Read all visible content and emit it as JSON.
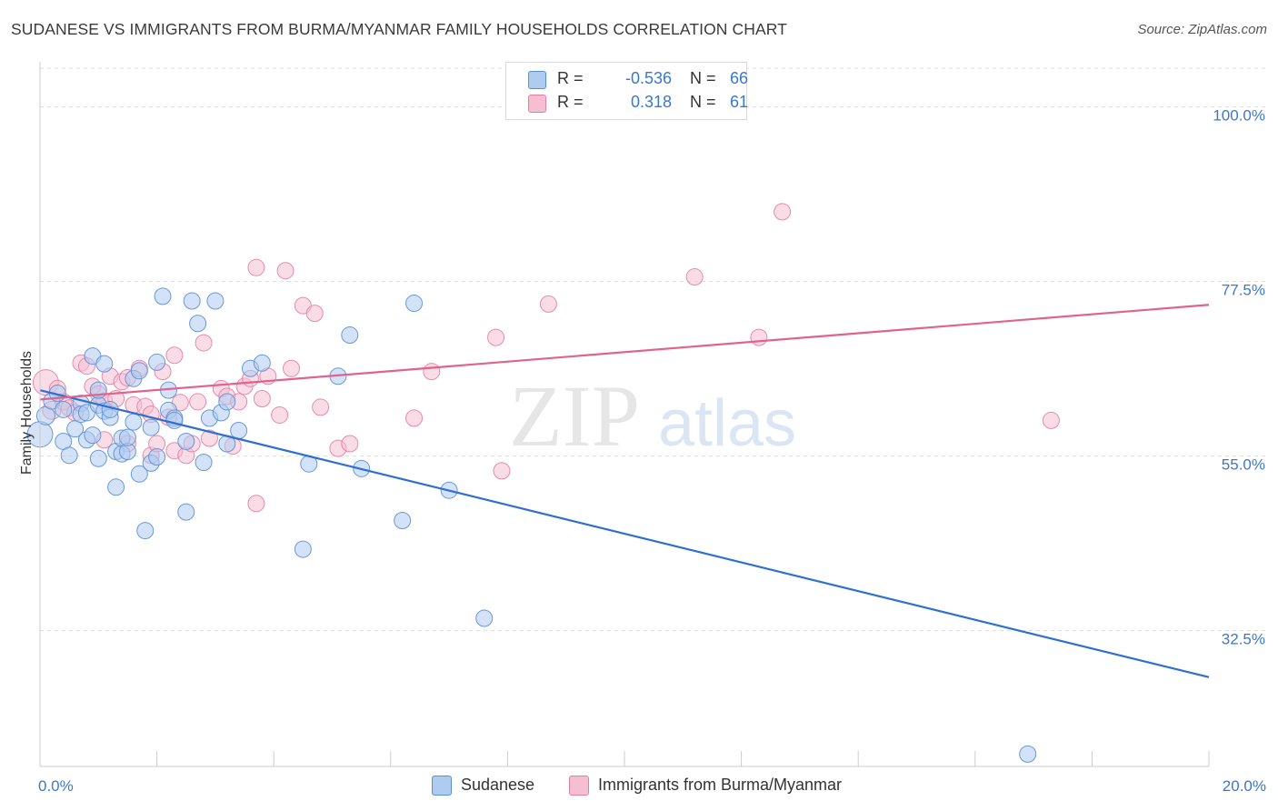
{
  "title": "SUDANESE VS IMMIGRANTS FROM BURMA/MYANMAR FAMILY HOUSEHOLDS CORRELATION CHART",
  "source": "Source: ZipAtlas.com",
  "colors": {
    "blue_fill": "#aecbf0",
    "blue_stroke": "#5a8fd6",
    "blue_line": "#2f6fd0",
    "pink_fill": "#f6bfd1",
    "pink_stroke": "#e47fa2",
    "pink_line": "#e0628f",
    "tick_label": "#3a78d0",
    "grid": "#dddddd"
  },
  "legend": {
    "rows": [
      {
        "label": "R =",
        "r": "-0.536",
        "n_label": "N =",
        "n": "66",
        "color": "#aecbf0",
        "stroke": "#5a8fd6"
      },
      {
        "label": "R =",
        "r": "0.318",
        "n_label": "N =",
        "n": "61",
        "color": "#f6bfd1",
        "stroke": "#e47fa2"
      }
    ]
  },
  "watermark": {
    "zip": "ZIP",
    "atlas": "atlas"
  },
  "chart_data": {
    "type": "scatter",
    "xlabel": "",
    "ylabel": "Family Households",
    "xlim": [
      0,
      20
    ],
    "ylim": [
      15,
      105
    ],
    "x_tick_labels": [
      {
        "value": 0,
        "label": "0.0%"
      },
      {
        "value": 20,
        "label": "20.0%"
      }
    ],
    "y_tick_labels": [
      {
        "value": 100,
        "label": "100.0%"
      },
      {
        "value": 77.5,
        "label": "77.5%"
      },
      {
        "value": 55,
        "label": "55.0%"
      },
      {
        "value": 32.5,
        "label": "32.5%"
      }
    ],
    "grid": true,
    "legend_position": "bottom",
    "series": [
      {
        "name": "Sudanese",
        "trend": {
          "x": [
            0,
            20
          ],
          "y": [
            63.5,
            26.5
          ]
        },
        "points": [
          [
            0.0,
            57.8,
            14
          ],
          [
            0.1,
            60.2,
            10
          ],
          [
            0.2,
            62.1,
            9
          ],
          [
            0.3,
            63.1,
            9
          ],
          [
            0.4,
            61.0,
            9
          ],
          [
            0.4,
            56.9,
            9
          ],
          [
            0.5,
            55.1,
            9
          ],
          [
            0.6,
            58.5,
            9
          ],
          [
            0.7,
            61.8,
            9
          ],
          [
            0.7,
            60.4,
            9
          ],
          [
            0.8,
            57.1,
            9
          ],
          [
            0.8,
            60.6,
            9
          ],
          [
            0.9,
            57.7,
            9
          ],
          [
            0.9,
            67.9,
            9
          ],
          [
            1.0,
            61.6,
            9
          ],
          [
            1.0,
            63.5,
            9
          ],
          [
            1.0,
            54.7,
            9
          ],
          [
            1.1,
            60.8,
            9
          ],
          [
            1.1,
            66.9,
            9
          ],
          [
            1.2,
            60.0,
            9
          ],
          [
            1.2,
            61.0,
            9
          ],
          [
            1.3,
            55.6,
            9
          ],
          [
            1.3,
            51.0,
            9
          ],
          [
            1.4,
            55.3,
            9
          ],
          [
            1.4,
            57.3,
            9
          ],
          [
            1.5,
            55.6,
            9
          ],
          [
            1.5,
            57.4,
            9
          ],
          [
            1.6,
            59.4,
            9
          ],
          [
            1.6,
            65.0,
            9
          ],
          [
            1.7,
            66.0,
            9
          ],
          [
            1.7,
            52.7,
            9
          ],
          [
            1.8,
            45.4,
            9
          ],
          [
            1.9,
            58.7,
            9
          ],
          [
            1.9,
            54.1,
            9
          ],
          [
            2.0,
            67.1,
            9
          ],
          [
            2.0,
            54.9,
            9
          ],
          [
            2.1,
            75.6,
            9
          ],
          [
            2.2,
            63.5,
            9
          ],
          [
            2.2,
            60.9,
            9
          ],
          [
            2.3,
            59.9,
            9
          ],
          [
            2.3,
            59.6,
            9
          ],
          [
            2.5,
            56.9,
            9
          ],
          [
            2.5,
            47.8,
            9
          ],
          [
            2.6,
            75.0,
            9
          ],
          [
            2.7,
            72.1,
            9
          ],
          [
            2.8,
            54.2,
            9
          ],
          [
            2.9,
            59.9,
            9
          ],
          [
            3.0,
            75.0,
            9
          ],
          [
            3.1,
            60.6,
            9
          ],
          [
            3.2,
            56.6,
            9
          ],
          [
            3.2,
            62.0,
            9
          ],
          [
            3.4,
            58.3,
            9
          ],
          [
            3.6,
            66.3,
            9
          ],
          [
            3.8,
            67.0,
            9
          ],
          [
            4.5,
            43.0,
            9
          ],
          [
            4.6,
            54.0,
            9
          ],
          [
            5.1,
            65.3,
            9
          ],
          [
            5.3,
            70.6,
            9
          ],
          [
            5.5,
            53.4,
            9
          ],
          [
            6.2,
            46.7,
            9
          ],
          [
            6.4,
            74.7,
            9
          ],
          [
            7.0,
            50.6,
            9
          ],
          [
            7.6,
            34.1,
            9
          ],
          [
            16.9,
            16.6,
            9
          ]
        ]
      },
      {
        "name": "Immigrants from Burma/Myanmar",
        "trend": {
          "x": [
            0,
            20
          ],
          "y": [
            62.3,
            74.5
          ]
        },
        "points": [
          [
            0.1,
            64.5,
            14
          ],
          [
            0.2,
            60.9,
            10
          ],
          [
            0.3,
            63.7,
            9
          ],
          [
            0.4,
            62.0,
            9
          ],
          [
            0.5,
            61.2,
            9
          ],
          [
            0.6,
            60.6,
            9
          ],
          [
            0.7,
            67.0,
            9
          ],
          [
            0.8,
            66.6,
            9
          ],
          [
            0.9,
            64.0,
            9
          ],
          [
            1.0,
            63.0,
            9
          ],
          [
            1.1,
            57.1,
            9
          ],
          [
            1.1,
            62.1,
            9
          ],
          [
            1.2,
            65.3,
            9
          ],
          [
            1.3,
            62.4,
            9
          ],
          [
            1.4,
            64.6,
            9
          ],
          [
            1.5,
            65.1,
            9
          ],
          [
            1.5,
            56.6,
            9
          ],
          [
            1.6,
            61.6,
            9
          ],
          [
            1.7,
            66.3,
            9
          ],
          [
            1.8,
            61.4,
            9
          ],
          [
            1.9,
            60.4,
            9
          ],
          [
            1.9,
            55.1,
            9
          ],
          [
            2.0,
            56.6,
            9
          ],
          [
            2.1,
            65.9,
            9
          ],
          [
            2.2,
            60.0,
            9
          ],
          [
            2.3,
            68.0,
            9
          ],
          [
            2.3,
            55.7,
            9
          ],
          [
            2.4,
            61.9,
            9
          ],
          [
            2.5,
            55.1,
            9
          ],
          [
            2.6,
            56.6,
            9
          ],
          [
            2.7,
            62.0,
            9
          ],
          [
            2.8,
            69.6,
            9
          ],
          [
            2.9,
            57.3,
            9
          ],
          [
            3.1,
            63.7,
            9
          ],
          [
            3.2,
            62.7,
            9
          ],
          [
            3.3,
            56.3,
            9
          ],
          [
            3.4,
            62.0,
            9
          ],
          [
            3.5,
            64.0,
            9
          ],
          [
            3.6,
            65.0,
            9
          ],
          [
            3.7,
            79.3,
            9
          ],
          [
            3.7,
            48.9,
            9
          ],
          [
            3.8,
            62.4,
            9
          ],
          [
            3.9,
            65.3,
            9
          ],
          [
            4.1,
            60.3,
            9
          ],
          [
            4.2,
            78.9,
            9
          ],
          [
            4.3,
            66.3,
            9
          ],
          [
            4.5,
            74.4,
            9
          ],
          [
            4.7,
            73.4,
            9
          ],
          [
            4.8,
            61.3,
            9
          ],
          [
            5.1,
            56.0,
            9
          ],
          [
            5.3,
            56.6,
            9
          ],
          [
            6.4,
            59.9,
            9
          ],
          [
            6.7,
            65.9,
            9
          ],
          [
            7.8,
            70.3,
            9
          ],
          [
            7.9,
            53.1,
            9
          ],
          [
            8.7,
            74.6,
            9
          ],
          [
            11.2,
            78.1,
            9
          ],
          [
            12.3,
            70.3,
            9
          ],
          [
            12.7,
            86.5,
            9
          ],
          [
            17.3,
            59.6,
            9
          ]
        ]
      }
    ]
  }
}
